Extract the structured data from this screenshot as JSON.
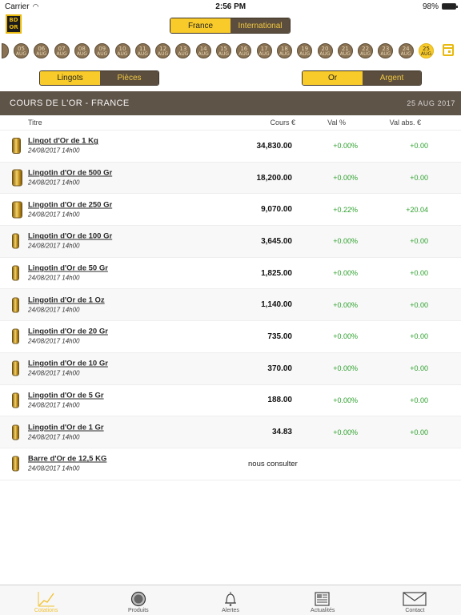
{
  "status_bar": {
    "carrier": "Carrier",
    "time": "2:56 PM",
    "battery": "98%",
    "battery_level": 0.98
  },
  "logo": {
    "text": "BD OR"
  },
  "region_tabs": [
    "France",
    "International"
  ],
  "date_strip": {
    "items": [
      {
        "day": "",
        "month": ""
      },
      {
        "day": "05",
        "month": "AUG"
      },
      {
        "day": "06",
        "month": "AUG"
      },
      {
        "day": "07",
        "month": "AUG"
      },
      {
        "day": "08",
        "month": "AUG"
      },
      {
        "day": "09",
        "month": "AUG"
      },
      {
        "day": "10",
        "month": "AUG"
      },
      {
        "day": "11",
        "month": "AUG"
      },
      {
        "day": "12",
        "month": "AUG"
      },
      {
        "day": "13",
        "month": "AUG"
      },
      {
        "day": "14",
        "month": "AUG"
      },
      {
        "day": "15",
        "month": "AUG"
      },
      {
        "day": "16",
        "month": "AUG"
      },
      {
        "day": "17",
        "month": "AUG"
      },
      {
        "day": "18",
        "month": "AUG"
      },
      {
        "day": "19",
        "month": "AUG"
      },
      {
        "day": "20",
        "month": "AUG"
      },
      {
        "day": "21",
        "month": "AUG"
      },
      {
        "day": "22",
        "month": "AUG"
      },
      {
        "day": "23",
        "month": "AUG"
      },
      {
        "day": "24",
        "month": "AUG"
      },
      {
        "day": "25",
        "month": "AUG"
      }
    ],
    "active_index": 21
  },
  "type_tabs": [
    "Lingots",
    "Pièces"
  ],
  "metal_tabs": [
    "Or",
    "Argent"
  ],
  "banner": {
    "title": "COURS DE L'OR - FRANCE",
    "date": "25 AUG 2017"
  },
  "table": {
    "columns": {
      "title": "Titre",
      "price": "Cours €",
      "pct": "Val %",
      "abs": "Val abs. €"
    },
    "rows": [
      {
        "name": "Lingot d'Or de 1 Kg",
        "date": "24/08/2017 14h00",
        "price": "34,830.00",
        "pct": "+0.00%",
        "abs": "+0.00"
      },
      {
        "name": "Lingotin d'Or de 500 Gr",
        "date": "24/08/2017 14h00",
        "price": "18,200.00",
        "pct": "+0.00%",
        "abs": "+0.00"
      },
      {
        "name": "Lingotin d'Or de 250 Gr",
        "date": "24/08/2017 14h00",
        "price": "9,070.00",
        "pct": "+0.22%",
        "abs": "+20.04"
      },
      {
        "name": "Lingotin d'Or de 100 Gr",
        "date": "24/08/2017 14h00",
        "price": "3,645.00",
        "pct": "+0.00%",
        "abs": "+0.00"
      },
      {
        "name": "Lingotin d'Or de 50 Gr",
        "date": "24/08/2017 14h00",
        "price": "1,825.00",
        "pct": "+0.00%",
        "abs": "+0.00"
      },
      {
        "name": "Lingotin d'Or de 1 Oz",
        "date": "24/08/2017 14h00",
        "price": "1,140.00",
        "pct": "+0.00%",
        "abs": "+0.00"
      },
      {
        "name": "Lingotin d'Or de 20 Gr",
        "date": "24/08/2017 14h00",
        "price": "735.00",
        "pct": "+0.00%",
        "abs": "+0.00"
      },
      {
        "name": "Lingotin d'Or de 10 Gr",
        "date": "24/08/2017 14h00",
        "price": "370.00",
        "pct": "+0.00%",
        "abs": "+0.00"
      },
      {
        "name": "Lingotin d'Or de 5 Gr",
        "date": "24/08/2017 14h00",
        "price": "188.00",
        "pct": "+0.00%",
        "abs": "+0.00"
      },
      {
        "name": "Lingotin d'Or de 1 Gr",
        "date": "24/08/2017 14h00",
        "price": "34.83",
        "pct": "+0.00%",
        "abs": "+0.00"
      },
      {
        "name": "Barre d'Or de 12,5 KG",
        "date": "24/08/2017 14h00",
        "consult": "nous consulter"
      }
    ]
  },
  "tabbar": [
    {
      "label": "Cotations",
      "icon": "chart-icon",
      "active": true
    },
    {
      "label": "Produits",
      "icon": "coin-icon",
      "active": false
    },
    {
      "label": "Alertes",
      "icon": "bell-icon",
      "active": false
    },
    {
      "label": "Actualités",
      "icon": "newspaper-icon",
      "active": false
    },
    {
      "label": "Contact",
      "icon": "envelope-icon",
      "active": false
    }
  ],
  "colors": {
    "accent": "#f8cb2a",
    "brown": "#5f5448",
    "positive": "#2ca02c"
  }
}
